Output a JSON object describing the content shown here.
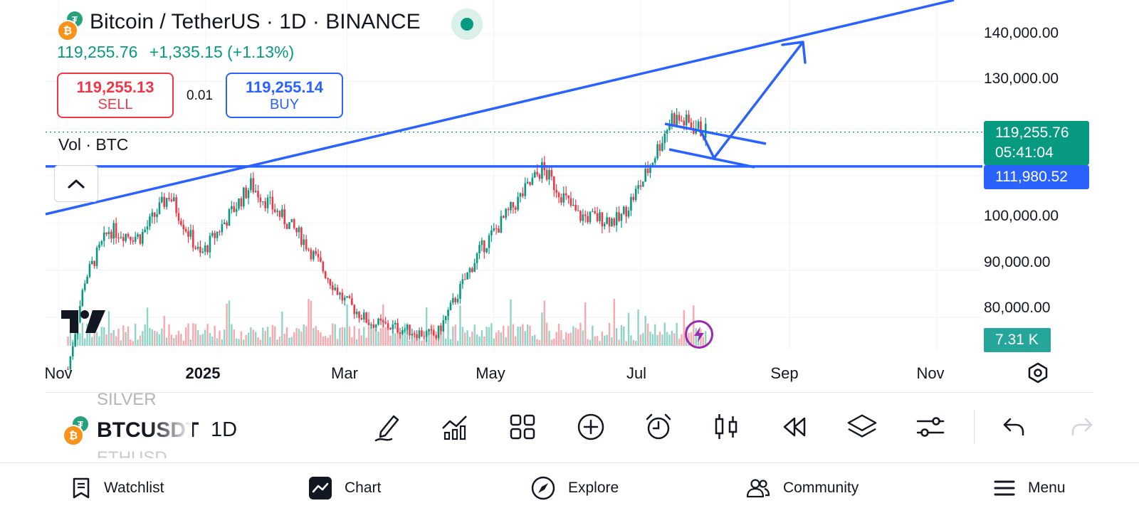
{
  "header": {
    "title": "Bitcoin / TetherUS · 1D · BINANCE",
    "last_price": "119,255.76",
    "change": "+1,335.15 (+1.13%)",
    "coin_icons": [
      "bitcoin-icon",
      "tether-icon"
    ]
  },
  "trade": {
    "sell_price": "119,255.13",
    "sell_label": "SELL",
    "spread": "0.01",
    "buy_price": "119,255.14",
    "buy_label": "BUY"
  },
  "volume_indicator": {
    "label": "Vol · BTC",
    "value_label": "7.31 K"
  },
  "price_scale": {
    "ticks": [
      "140,000.00",
      "130,000.00",
      "100,000.00",
      "90,000.00",
      "80,000.00"
    ],
    "last_price_tag": "119,255.76",
    "countdown": "05:41:04",
    "level_tag": "111,980.52"
  },
  "time_scale": {
    "ticks": [
      "Nov",
      "2025",
      "Mar",
      "May",
      "Jul",
      "Sep",
      "Nov"
    ]
  },
  "toolbar": {
    "symbol_prev": "SILVER",
    "symbol_current": "BTCUSDT",
    "symbol_next": "ETHUSD",
    "interval": "1D",
    "tools": [
      "drawing-icon",
      "indicators-icon",
      "templates-icon",
      "add-icon",
      "alert-icon",
      "chart-type-icon",
      "replay-icon",
      "layers-icon",
      "settings-sliders-icon",
      "undo-icon",
      "redo-icon"
    ]
  },
  "bottom_nav": {
    "items": [
      {
        "label": "Watchlist",
        "icon": "watchlist-icon"
      },
      {
        "label": "Chart",
        "icon": "chart-icon"
      },
      {
        "label": "Explore",
        "icon": "compass-icon"
      },
      {
        "label": "Community",
        "icon": "community-icon"
      },
      {
        "label": "Menu",
        "icon": "menu-icon"
      }
    ]
  },
  "colors": {
    "up": "#089981",
    "down": "#f23645",
    "drawing": "#2962ff",
    "volume_up": "#8fd4c6",
    "volume_down": "#f7a9ae"
  },
  "chart_data": {
    "type": "candlestick",
    "symbol": "BTCUSDT",
    "interval": "1D",
    "x_ticks": [
      "Nov",
      "2025",
      "Mar",
      "May",
      "Jul",
      "Sep",
      "Nov"
    ],
    "y_ticks": [
      80000,
      90000,
      100000,
      130000,
      140000
    ],
    "ylim": [
      73000,
      146000
    ],
    "last_price": 119255.76,
    "horizontal_level": 111980.52,
    "closes_approx": [
      {
        "date": "2024-11-05",
        "close": 69000
      },
      {
        "date": "2024-11-12",
        "close": 88000
      },
      {
        "date": "2024-11-22",
        "close": 98500
      },
      {
        "date": "2024-12-05",
        "close": 97000
      },
      {
        "date": "2024-12-17",
        "close": 106000
      },
      {
        "date": "2024-12-30",
        "close": 93000
      },
      {
        "date": "2025-01-20",
        "close": 108000
      },
      {
        "date": "2025-02-10",
        "close": 97000
      },
      {
        "date": "2025-02-27",
        "close": 84000
      },
      {
        "date": "2025-03-10",
        "close": 79000
      },
      {
        "date": "2025-04-07",
        "close": 76000
      },
      {
        "date": "2025-04-25",
        "close": 94000
      },
      {
        "date": "2025-05-21",
        "close": 111500
      },
      {
        "date": "2025-06-05",
        "close": 101500
      },
      {
        "date": "2025-06-22",
        "close": 100500
      },
      {
        "date": "2025-07-02",
        "close": 109000
      },
      {
        "date": "2025-07-14",
        "close": 122500
      },
      {
        "date": "2025-07-28",
        "close": 119255.76
      }
    ]
  }
}
